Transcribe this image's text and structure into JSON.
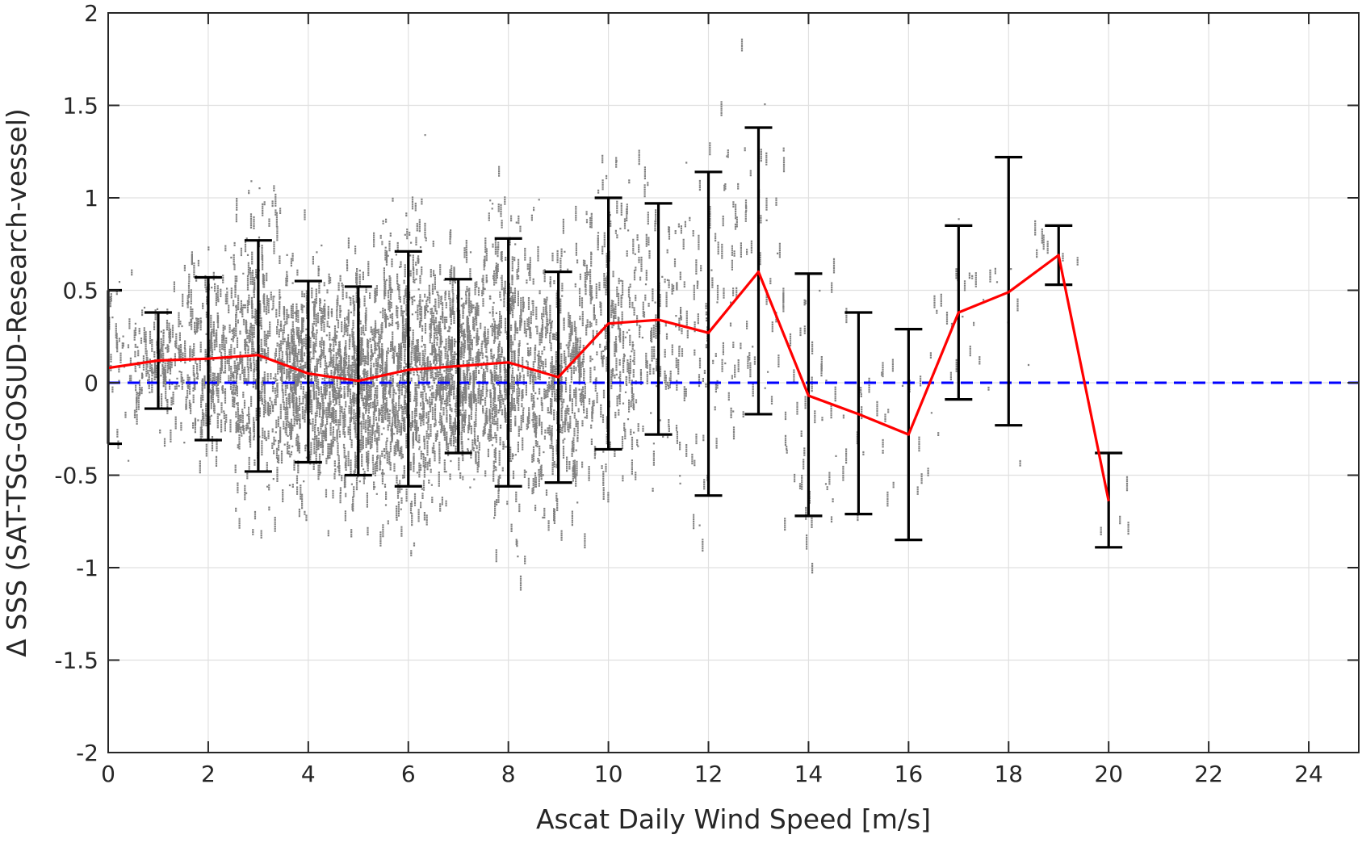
{
  "chart_data": {
    "type": "scatter",
    "title": "",
    "xlabel": "Ascat Daily Wind Speed [m/s]",
    "ylabel": "Δ SSS (SAT-TSG-GOSUD-Research-vessel)",
    "xlim": [
      0,
      25
    ],
    "ylim": [
      -2,
      2
    ],
    "grid": true,
    "xticks": [
      0,
      2,
      4,
      6,
      8,
      10,
      12,
      14,
      16,
      18,
      20,
      22,
      24
    ],
    "xtick_labels": [
      "0",
      "2",
      "4",
      "6",
      "8",
      "10",
      "12",
      "14",
      "16",
      "18",
      "20",
      "22",
      "24"
    ],
    "yticks": [
      2,
      1.5,
      1,
      0.5,
      0,
      -0.5,
      -1,
      -1.5,
      -2
    ],
    "ytick_labels": [
      "2",
      "1.5",
      "1",
      "0.5",
      "0",
      "-0.5",
      "-1",
      "-1.5",
      "-2"
    ],
    "colors": {
      "scatter": "#808080",
      "mean_line": "#ff0000",
      "error_bars": "#000000",
      "zero_line": "#0000ff",
      "grid": "#e0e0e0",
      "axes": "#262626"
    },
    "scatter_description": "dense gray point cloud of individual ΔSSS samples, mostly within ±1 for winds 0–14 m/s",
    "series": [
      {
        "type": "line",
        "x": [
          0,
          1,
          2,
          3,
          4,
          5,
          6,
          7,
          8,
          9,
          10,
          11,
          12,
          13,
          14,
          15,
          16,
          17,
          18,
          19,
          20
        ],
        "y": [
          0.08,
          0.12,
          0.13,
          0.15,
          0.05,
          0.01,
          0.07,
          0.09,
          0.11,
          0.03,
          0.32,
          0.34,
          0.27,
          0.6,
          -0.07,
          -0.17,
          -0.28,
          0.38,
          0.49,
          0.69,
          -0.64
        ]
      },
      {
        "type": "errorbar",
        "x": [
          0,
          1,
          2,
          3,
          4,
          5,
          6,
          7,
          8,
          9,
          10,
          11,
          12,
          13,
          14,
          15,
          16,
          17,
          18,
          19,
          20
        ],
        "upper": [
          0.5,
          0.38,
          0.57,
          0.77,
          0.55,
          0.52,
          0.71,
          0.56,
          0.78,
          0.6,
          1.0,
          0.97,
          1.14,
          1.38,
          0.59,
          0.38,
          0.29,
          0.85,
          1.22,
          0.85,
          -0.38
        ],
        "lower": [
          -0.33,
          -0.14,
          -0.31,
          -0.48,
          -0.43,
          -0.5,
          -0.56,
          -0.38,
          -0.56,
          -0.54,
          -0.36,
          -0.28,
          -0.61,
          -0.17,
          -0.72,
          -0.71,
          -0.85,
          -0.09,
          -0.23,
          0.53,
          -0.89
        ]
      },
      {
        "type": "reference-line",
        "y": 0
      }
    ]
  }
}
